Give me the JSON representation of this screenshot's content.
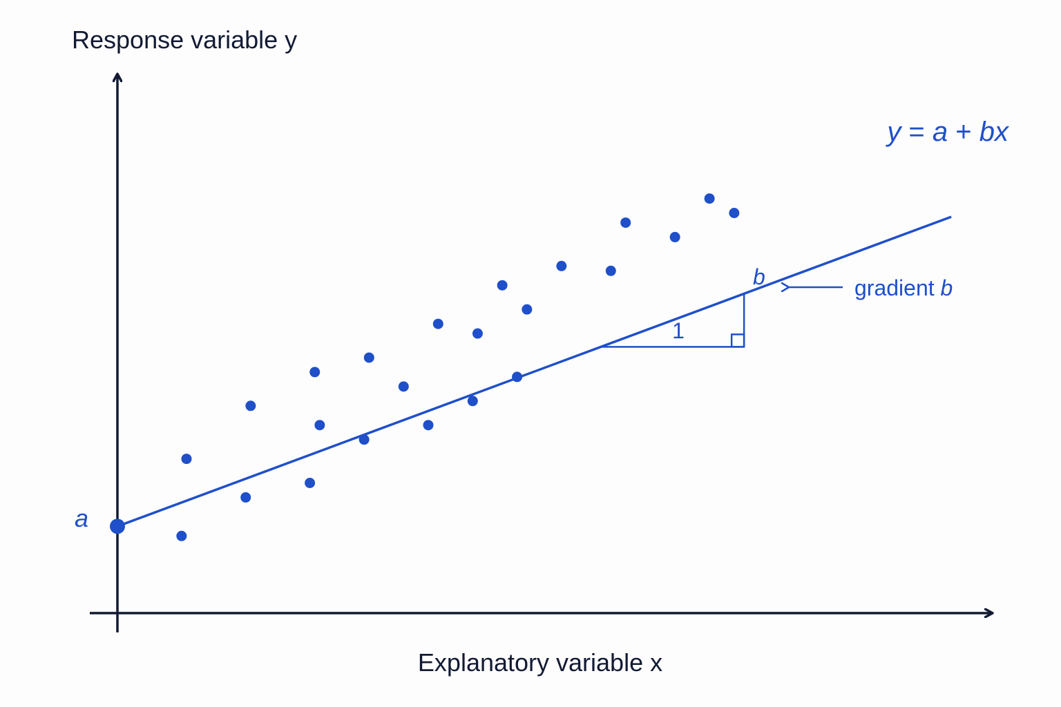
{
  "chart_data": {
    "type": "scatter",
    "ylabel": "Response variable y",
    "xlabel": "Explanatory variable x",
    "equation": {
      "lhs": "y",
      "eq": " = ",
      "a": "a",
      "plus": " + ",
      "bx": "bx"
    },
    "intercept_label": "a",
    "rise_label": "b",
    "run_label": "1",
    "gradient_annotation": {
      "text": "gradient ",
      "symbol": "b"
    },
    "line": {
      "intercept": 1.8,
      "slope": 0.38
    },
    "xlim": [
      0,
      17.5
    ],
    "ylim": [
      0,
      11
    ],
    "points": [
      {
        "x": 1.3,
        "y": 1.6
      },
      {
        "x": 1.4,
        "y": 3.2
      },
      {
        "x": 2.6,
        "y": 2.4
      },
      {
        "x": 2.7,
        "y": 4.3
      },
      {
        "x": 3.9,
        "y": 2.7
      },
      {
        "x": 4.0,
        "y": 5.0
      },
      {
        "x": 4.1,
        "y": 3.9
      },
      {
        "x": 5.0,
        "y": 3.6
      },
      {
        "x": 5.1,
        "y": 5.3
      },
      {
        "x": 5.8,
        "y": 4.7
      },
      {
        "x": 6.3,
        "y": 3.9
      },
      {
        "x": 6.5,
        "y": 6.0
      },
      {
        "x": 7.2,
        "y": 4.4
      },
      {
        "x": 7.3,
        "y": 5.8
      },
      {
        "x": 7.8,
        "y": 6.8
      },
      {
        "x": 8.1,
        "y": 4.9
      },
      {
        "x": 8.3,
        "y": 6.3
      },
      {
        "x": 9.0,
        "y": 7.2
      },
      {
        "x": 10.0,
        "y": 7.1
      },
      {
        "x": 10.3,
        "y": 8.1
      },
      {
        "x": 11.3,
        "y": 7.8
      },
      {
        "x": 12.0,
        "y": 8.6
      },
      {
        "x": 12.5,
        "y": 8.3
      }
    ],
    "grid": false,
    "colors": {
      "accent": "#1f4fc9",
      "axes": "#121a33"
    }
  }
}
